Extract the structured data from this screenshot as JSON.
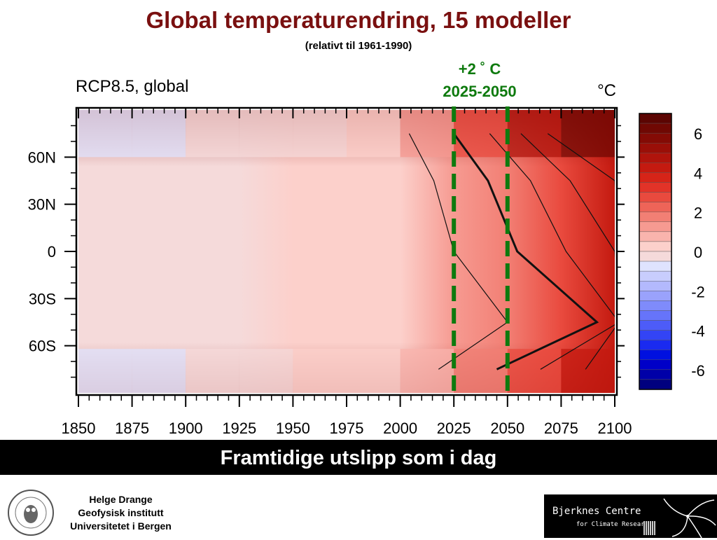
{
  "header": {
    "title": "Global temperaturendring, 15 modeller",
    "subtitle": "(relativt til 1961-1990)"
  },
  "annotation": {
    "line1": "+2 ˚ C",
    "line2": "2025-2050",
    "period": [
      2025,
      2050
    ],
    "color": "#0e7a0e"
  },
  "chart_data": {
    "type": "heatmap",
    "title": "RCP8.5, global",
    "unit_label": "°C",
    "x": {
      "lim": [
        1850,
        2100
      ],
      "ticks": [
        1850,
        1875,
        1900,
        1925,
        1950,
        1975,
        2000,
        2025,
        2050,
        2075,
        2100
      ]
    },
    "y": {
      "lim": [
        -90,
        90
      ],
      "ticks": [
        60,
        30,
        0,
        -30,
        -60
      ],
      "tick_labels": [
        "60N",
        "30N",
        "0",
        "30S",
        "60S"
      ]
    },
    "colorbar": {
      "ticks": [
        6,
        4,
        2,
        0,
        -2,
        -4,
        -6
      ],
      "levels": [
        -7,
        -6.5,
        -6,
        -5.5,
        -5,
        -4.5,
        -4,
        -3.5,
        -3,
        -2.5,
        -2,
        -1.5,
        -1,
        -0.5,
        0,
        0.5,
        1,
        1.5,
        2,
        2.5,
        3,
        3.5,
        4,
        4.5,
        5,
        5.5,
        6,
        6.5,
        7
      ],
      "colors": [
        "#00007f",
        "#0000a8",
        "#0000c8",
        "#0010e0",
        "#1a2af0",
        "#3344f5",
        "#4d5cf8",
        "#6674fa",
        "#7f8bfb",
        "#9aa2fc",
        "#b3b9fd",
        "#c8cdfd",
        "#dfe3fe",
        "#f5dada",
        "#fcd0cb",
        "#f9b4ad",
        "#f69a91",
        "#f27f74",
        "#ee6458",
        "#e94a3e",
        "#e23328",
        "#d62418",
        "#c41a10",
        "#b0140c",
        "#9a0f08",
        "#840b05",
        "#700803",
        "#5c0502"
      ]
    },
    "temperature_change_by_decade": {
      "years": [
        1850,
        1875,
        1900,
        1925,
        1950,
        1975,
        2000,
        2025,
        2050,
        2075,
        2100
      ],
      "arctic_60_90N": [
        -0.8,
        -0.8,
        -0.5,
        -0.3,
        -0.2,
        0.1,
        0.8,
        2.0,
        3.5,
        5.5,
        7.0
      ],
      "midlat_30_60N": [
        -0.3,
        -0.2,
        -0.2,
        0.1,
        0.0,
        0.1,
        0.5,
        1.3,
        2.4,
        3.8,
        5.0
      ],
      "tropics_30S_30N": [
        -0.2,
        -0.2,
        -0.2,
        -0.1,
        0.0,
        0.1,
        0.4,
        1.0,
        1.8,
        2.9,
        4.0
      ],
      "southern_30_60S": [
        -0.1,
        -0.1,
        -0.1,
        -0.1,
        0.0,
        0.1,
        0.2,
        0.5,
        1.0,
        1.6,
        2.2
      ],
      "antarctic_60_90S": [
        -0.6,
        -0.6,
        -0.5,
        -0.3,
        -0.1,
        0.1,
        0.5,
        1.2,
        2.2,
        3.5,
        4.6
      ]
    },
    "grid": false
  },
  "banner": {
    "text": "Framtidige utslipp som i dag"
  },
  "footer": {
    "author_line1": "Helge Drange",
    "author_line2": "Geofysisk institutt",
    "author_line3": "Universitetet i Bergen",
    "seal_text": "UNIVERSITAS BERGENSIS",
    "logo_name": "Bjerknes Centre",
    "logo_sub": "for Climate Research"
  }
}
